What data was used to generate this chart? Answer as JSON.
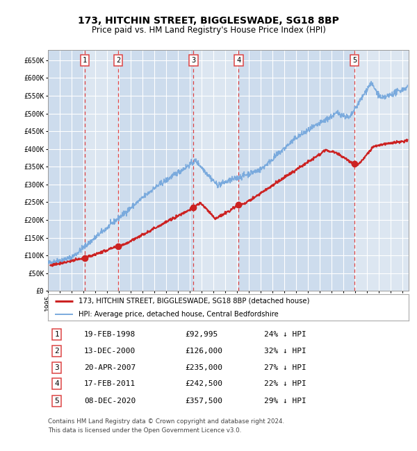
{
  "title": "173, HITCHIN STREET, BIGGLESWADE, SG18 8BP",
  "subtitle": "Price paid vs. HM Land Registry's House Price Index (HPI)",
  "background_color": "#ffffff",
  "plot_bg_color": "#dce6f1",
  "grid_color": "#ffffff",
  "hpi_color": "#7aaadd",
  "price_color": "#cc2222",
  "sale_marker_color": "#cc2222",
  "vline_color": "#dd4444",
  "vband_color": "#c8d8ec",
  "ylim": [
    0,
    680000
  ],
  "yticks": [
    0,
    50000,
    100000,
    150000,
    200000,
    250000,
    300000,
    350000,
    400000,
    450000,
    500000,
    550000,
    600000,
    650000
  ],
  "ytick_labels": [
    "£0",
    "£50K",
    "£100K",
    "£150K",
    "£200K",
    "£250K",
    "£300K",
    "£350K",
    "£400K",
    "£450K",
    "£500K",
    "£550K",
    "£600K",
    "£650K"
  ],
  "xlim_start": 1995.0,
  "xlim_end": 2025.5,
  "sales": [
    {
      "num": 1,
      "date": 1998.13,
      "price": 92995
    },
    {
      "num": 2,
      "date": 2000.96,
      "price": 126000
    },
    {
      "num": 3,
      "date": 2007.31,
      "price": 235000
    },
    {
      "num": 4,
      "date": 2011.13,
      "price": 242500
    },
    {
      "num": 5,
      "date": 2020.93,
      "price": 357500
    }
  ],
  "legend1": "173, HITCHIN STREET, BIGGLESWADE, SG18 8BP (detached house)",
  "legend2": "HPI: Average price, detached house, Central Bedfordshire",
  "table_rows": [
    [
      "1",
      "19-FEB-1998",
      "£92,995",
      "24% ↓ HPI"
    ],
    [
      "2",
      "13-DEC-2000",
      "£126,000",
      "32% ↓ HPI"
    ],
    [
      "3",
      "20-APR-2007",
      "£235,000",
      "27% ↓ HPI"
    ],
    [
      "4",
      "17-FEB-2011",
      "£242,500",
      "22% ↓ HPI"
    ],
    [
      "5",
      "08-DEC-2020",
      "£357,500",
      "29% ↓ HPI"
    ]
  ],
  "footnote1": "Contains HM Land Registry data © Crown copyright and database right 2024.",
  "footnote2": "This data is licensed under the Open Government Licence v3.0."
}
